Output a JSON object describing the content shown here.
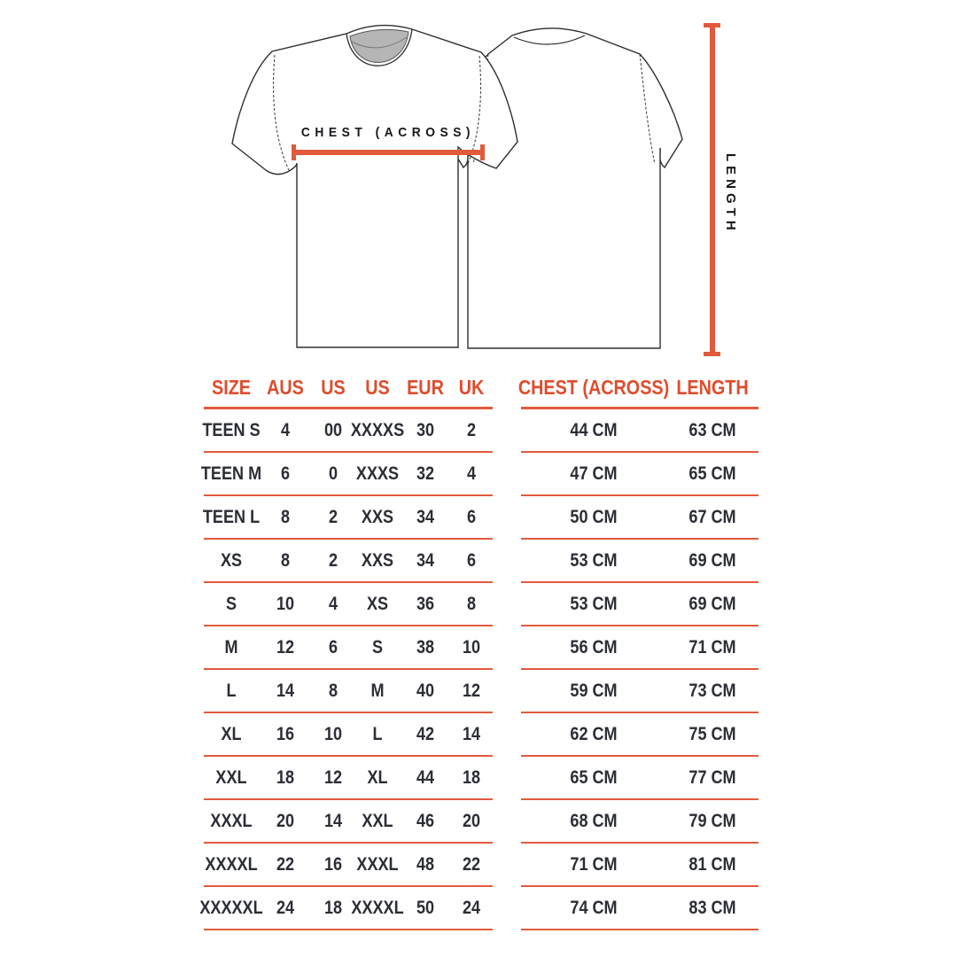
{
  "colors": {
    "accent": "#df4c2c",
    "line": "#e25a3c",
    "text": "#2b2e35"
  },
  "diagram": {
    "chest_label": "CHEST (ACROSS)",
    "length_label": "LENGTH"
  },
  "table": {
    "left_columns": [
      {
        "key": "size",
        "label": "SIZE"
      },
      {
        "key": "aus",
        "label": "AUS"
      },
      {
        "key": "us1",
        "label": "US"
      },
      {
        "key": "us2",
        "label": "US"
      },
      {
        "key": "eur",
        "label": "EUR"
      },
      {
        "key": "uk",
        "label": "UK"
      }
    ],
    "right_columns": [
      {
        "key": "chest",
        "label": "CHEST (ACROSS)"
      },
      {
        "key": "length",
        "label": "LENGTH"
      }
    ],
    "rows": [
      {
        "size": "TEEN S",
        "aus": "4",
        "us1": "00",
        "us2": "XXXXS",
        "eur": "30",
        "uk": "2",
        "chest": "44 CM",
        "length": "63 CM"
      },
      {
        "size": "TEEN M",
        "aus": "6",
        "us1": "0",
        "us2": "XXXS",
        "eur": "32",
        "uk": "4",
        "chest": "47 CM",
        "length": "65 CM"
      },
      {
        "size": "TEEN L",
        "aus": "8",
        "us1": "2",
        "us2": "XXS",
        "eur": "34",
        "uk": "6",
        "chest": "50 CM",
        "length": "67 CM"
      },
      {
        "size": "XS",
        "aus": "8",
        "us1": "2",
        "us2": "XXS",
        "eur": "34",
        "uk": "6",
        "chest": "53 CM",
        "length": "69 CM"
      },
      {
        "size": "S",
        "aus": "10",
        "us1": "4",
        "us2": "XS",
        "eur": "36",
        "uk": "8",
        "chest": "53 CM",
        "length": "69 CM"
      },
      {
        "size": "M",
        "aus": "12",
        "us1": "6",
        "us2": "S",
        "eur": "38",
        "uk": "10",
        "chest": "56 CM",
        "length": "71 CM"
      },
      {
        "size": "L",
        "aus": "14",
        "us1": "8",
        "us2": "M",
        "eur": "40",
        "uk": "12",
        "chest": "59 CM",
        "length": "73 CM"
      },
      {
        "size": "XL",
        "aus": "16",
        "us1": "10",
        "us2": "L",
        "eur": "42",
        "uk": "14",
        "chest": "62 CM",
        "length": "75 CM"
      },
      {
        "size": "XXL",
        "aus": "18",
        "us1": "12",
        "us2": "XL",
        "eur": "44",
        "uk": "18",
        "chest": "65 CM",
        "length": "77 CM"
      },
      {
        "size": "XXXL",
        "aus": "20",
        "us1": "14",
        "us2": "XXL",
        "eur": "46",
        "uk": "20",
        "chest": "68 CM",
        "length": "79 CM"
      },
      {
        "size": "XXXXL",
        "aus": "22",
        "us1": "16",
        "us2": "XXXL",
        "eur": "48",
        "uk": "22",
        "chest": "71 CM",
        "length": "81 CM"
      },
      {
        "size": "XXXXXL",
        "aus": "24",
        "us1": "18",
        "us2": "XXXXL",
        "eur": "50",
        "uk": "24",
        "chest": "74 CM",
        "length": "83 CM"
      }
    ]
  }
}
